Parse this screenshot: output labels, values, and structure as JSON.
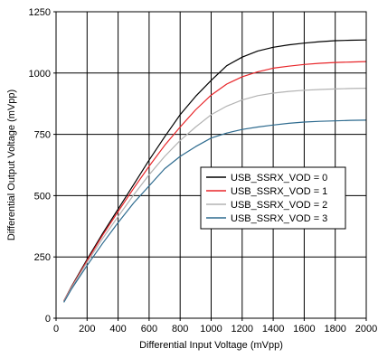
{
  "chart_data": {
    "type": "line",
    "xlabel": "Differential Input Voltage (mVpp)",
    "ylabel": "Differential Output Voltage (mVpp)",
    "xlim": [
      0,
      2000
    ],
    "ylim": [
      0,
      1250
    ],
    "xticks": [
      0,
      200,
      400,
      600,
      800,
      1000,
      1200,
      1400,
      1600,
      1800,
      2000
    ],
    "yticks": [
      0,
      250,
      500,
      750,
      1000,
      1250
    ],
    "grid": true,
    "legend_position": "center-right",
    "x": [
      50,
      100,
      200,
      300,
      400,
      500,
      600,
      700,
      800,
      900,
      1000,
      1100,
      1200,
      1300,
      1400,
      1500,
      1600,
      1700,
      1800,
      1900,
      2000
    ],
    "series": [
      {
        "name": "USB_SSRX_VOD = 0",
        "color": "#000000",
        "values": [
          70,
          130,
          240,
          345,
          445,
          545,
          645,
          740,
          830,
          905,
          970,
          1030,
          1065,
          1090,
          1105,
          1115,
          1122,
          1128,
          1132,
          1134,
          1135
        ]
      },
      {
        "name": "USB_SSRX_VOD = 1",
        "color": "#e8262a",
        "values": [
          70,
          128,
          235,
          338,
          435,
          530,
          620,
          705,
          780,
          850,
          910,
          955,
          985,
          1005,
          1020,
          1028,
          1035,
          1040,
          1043,
          1045,
          1047
        ]
      },
      {
        "name": "USB_SSRX_VOD = 2",
        "color": "#b3b3b3",
        "values": [
          68,
          125,
          228,
          325,
          415,
          503,
          585,
          660,
          725,
          780,
          830,
          865,
          890,
          908,
          918,
          925,
          930,
          933,
          935,
          937,
          938
        ]
      },
      {
        "name": "USB_SSRX_VOD = 3",
        "color": "#2e6b8f",
        "values": [
          65,
          120,
          215,
          305,
          390,
          470,
          540,
          610,
          660,
          700,
          735,
          755,
          770,
          780,
          788,
          795,
          800,
          803,
          805,
          807,
          808
        ]
      }
    ]
  }
}
